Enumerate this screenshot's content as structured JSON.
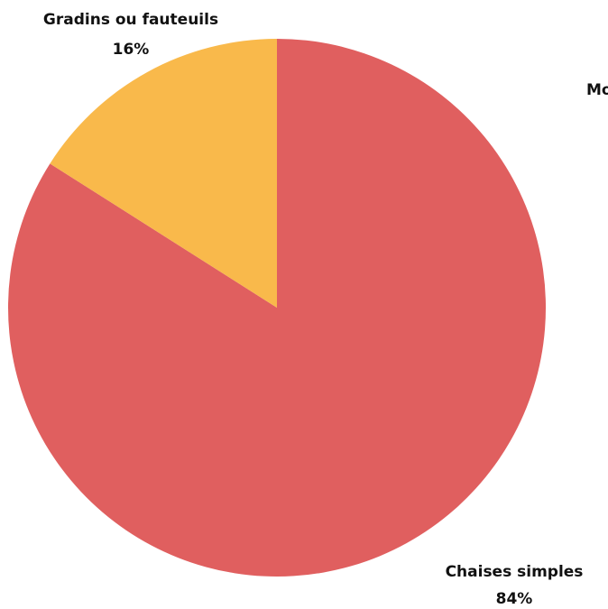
{
  "chart_data": {
    "type": "pie",
    "categories": [
      "Chaises simples",
      "Gradins ou fauteuils",
      "Mo"
    ],
    "values": [
      84,
      16,
      0
    ],
    "value_labels": [
      "84%",
      "16%",
      null
    ],
    "colors": [
      "#e05f5f",
      "#f9b94b",
      "#8a8a8a"
    ]
  }
}
